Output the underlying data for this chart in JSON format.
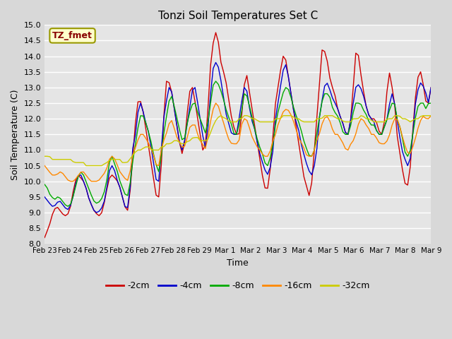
{
  "title": "Tonzi Soil Temperatures Set C",
  "xlabel": "Time",
  "ylabel": "Soil Temperature (C)",
  "ylim": [
    8.0,
    15.0
  ],
  "yticks": [
    8.0,
    8.5,
    9.0,
    9.5,
    10.0,
    10.5,
    11.0,
    11.5,
    12.0,
    12.5,
    13.0,
    13.5,
    14.0,
    14.5,
    15.0
  ],
  "xtick_labels": [
    "Feb 23",
    "Feb 24",
    "Feb 25",
    "Feb 26",
    "Feb 27",
    "Feb 28",
    "Feb 29",
    "Mar 1",
    "Mar 2",
    "Mar 3",
    "Mar 4",
    "Mar 5",
    "Mar 6",
    "Mar 7",
    "Mar 8",
    "Mar 9"
  ],
  "legend_label": "TZ_fmet",
  "series_labels": [
    "-2cm",
    "-4cm",
    "-8cm",
    "-16cm",
    "-32cm"
  ],
  "series_colors": [
    "#cc0000",
    "#0000cc",
    "#00aa00",
    "#ff8800",
    "#cccc00"
  ],
  "background_color": "#e8e8e8",
  "plot_bg_color": "#e5e5e5",
  "grid_color": "#ffffff",
  "t_2cm": [
    8.2,
    8.4,
    8.6,
    8.9,
    9.1,
    9.2,
    9.1,
    9.0,
    8.9,
    8.9,
    9.0,
    9.3,
    9.8,
    10.1,
    10.2,
    10.1,
    10.0,
    9.8,
    9.5,
    9.3,
    9.1,
    9.0,
    8.9,
    8.9,
    9.1,
    9.5,
    9.9,
    10.2,
    10.2,
    10.1,
    10.0,
    9.8,
    9.5,
    9.2,
    9.0,
    9.5,
    10.5,
    11.5,
    12.5,
    12.6,
    12.5,
    12.0,
    11.5,
    11.0,
    10.5,
    10.0,
    9.5,
    9.5,
    10.5,
    12.0,
    13.2,
    13.2,
    13.0,
    12.5,
    12.0,
    11.5,
    11.0,
    10.8,
    11.5,
    12.5,
    13.0,
    13.0,
    12.5,
    12.0,
    11.5,
    11.0,
    11.0,
    12.0,
    13.5,
    14.2,
    14.8,
    14.7,
    14.2,
    13.5,
    13.5,
    13.0,
    12.5,
    12.0,
    11.7,
    11.5,
    11.5,
    12.0,
    13.0,
    13.5,
    13.0,
    12.5,
    12.0,
    11.5,
    11.0,
    10.5,
    10.0,
    9.7,
    9.8,
    10.5,
    11.5,
    12.5,
    13.0,
    13.5,
    14.0,
    14.0,
    13.5,
    13.0,
    12.5,
    12.0,
    11.5,
    11.0,
    10.5,
    10.0,
    9.8,
    9.5,
    10.0,
    11.0,
    12.0,
    13.0,
    14.2,
    14.2,
    14.0,
    13.5,
    13.0,
    13.0,
    12.5,
    12.2,
    12.0,
    11.8,
    11.5,
    11.5,
    12.0,
    13.0,
    14.1,
    14.1,
    13.5,
    13.0,
    12.5,
    12.2,
    12.0,
    12.0,
    12.0,
    11.8,
    11.5,
    11.5,
    12.0,
    13.0,
    13.5,
    13.0,
    12.5,
    11.5,
    11.0,
    10.5,
    10.0,
    9.8,
    10.0,
    11.0,
    12.2,
    13.0,
    13.5,
    13.5,
    13.0,
    12.5,
    12.5,
    13.0
  ],
  "t_4cm": [
    9.5,
    9.4,
    9.3,
    9.2,
    9.2,
    9.3,
    9.4,
    9.3,
    9.2,
    9.1,
    9.1,
    9.3,
    9.6,
    10.0,
    10.2,
    10.2,
    10.0,
    9.8,
    9.5,
    9.3,
    9.1,
    9.0,
    9.0,
    9.1,
    9.2,
    9.5,
    10.0,
    10.5,
    10.5,
    10.3,
    10.0,
    9.8,
    9.5,
    9.2,
    9.1,
    9.5,
    11.0,
    11.2,
    12.0,
    12.5,
    12.5,
    12.0,
    11.8,
    11.5,
    11.0,
    10.5,
    10.0,
    10.0,
    11.0,
    12.0,
    12.5,
    13.0,
    13.0,
    12.5,
    12.0,
    11.5,
    11.0,
    11.0,
    11.5,
    12.0,
    12.5,
    13.0,
    13.0,
    12.5,
    12.0,
    11.5,
    11.0,
    11.5,
    12.5,
    13.5,
    13.8,
    13.8,
    13.5,
    13.0,
    12.5,
    12.0,
    11.8,
    11.5,
    11.5,
    11.5,
    12.0,
    12.5,
    13.0,
    13.0,
    12.5,
    12.0,
    11.8,
    11.5,
    11.0,
    10.8,
    10.5,
    10.3,
    10.2,
    10.5,
    11.0,
    12.0,
    12.5,
    13.0,
    13.5,
    13.8,
    13.5,
    13.0,
    12.5,
    12.0,
    11.8,
    11.5,
    11.0,
    10.8,
    10.5,
    10.3,
    10.2,
    10.5,
    11.0,
    12.0,
    12.5,
    13.0,
    13.2,
    13.0,
    12.8,
    12.5,
    12.5,
    12.2,
    12.0,
    11.8,
    11.5,
    11.5,
    12.0,
    12.5,
    13.0,
    13.1,
    13.0,
    12.8,
    12.5,
    12.2,
    12.0,
    12.0,
    11.8,
    11.5,
    11.5,
    11.5,
    11.8,
    12.0,
    12.5,
    12.8,
    12.5,
    12.0,
    11.5,
    11.0,
    10.8,
    10.5,
    10.5,
    11.0,
    12.0,
    12.8,
    13.0,
    13.2,
    13.0,
    12.8,
    12.5,
    13.0
  ],
  "t_8cm": [
    9.9,
    9.8,
    9.6,
    9.5,
    9.4,
    9.5,
    9.5,
    9.4,
    9.3,
    9.2,
    9.2,
    9.3,
    9.6,
    9.9,
    10.2,
    10.3,
    10.2,
    10.0,
    9.8,
    9.6,
    9.4,
    9.3,
    9.3,
    9.4,
    9.5,
    9.8,
    10.2,
    10.8,
    10.8,
    10.5,
    10.3,
    10.0,
    9.8,
    9.6,
    9.5,
    9.8,
    10.5,
    11.0,
    11.5,
    12.0,
    12.2,
    12.0,
    11.8,
    11.5,
    11.2,
    10.8,
    10.5,
    10.3,
    10.8,
    11.5,
    12.0,
    12.5,
    12.8,
    12.5,
    12.2,
    11.8,
    11.5,
    11.2,
    11.5,
    12.0,
    12.3,
    12.5,
    12.5,
    12.2,
    12.0,
    11.8,
    11.5,
    11.8,
    12.3,
    13.0,
    13.2,
    13.2,
    13.0,
    12.8,
    12.5,
    12.2,
    12.0,
    11.8,
    11.5,
    11.5,
    11.8,
    12.2,
    12.8,
    12.8,
    12.5,
    12.2,
    11.8,
    11.5,
    11.2,
    11.0,
    10.8,
    10.5,
    10.5,
    10.8,
    11.2,
    11.8,
    12.2,
    12.5,
    12.8,
    13.0,
    13.0,
    12.8,
    12.5,
    12.2,
    12.0,
    11.8,
    11.5,
    11.2,
    11.0,
    10.8,
    10.8,
    11.0,
    11.5,
    12.0,
    12.5,
    12.8,
    12.8,
    12.8,
    12.5,
    12.2,
    12.2,
    12.0,
    11.8,
    11.5,
    11.5,
    11.5,
    11.8,
    12.2,
    12.5,
    12.5,
    12.5,
    12.3,
    12.2,
    12.0,
    11.8,
    11.8,
    11.8,
    11.5,
    11.5,
    11.5,
    11.8,
    12.0,
    12.3,
    12.5,
    12.5,
    12.0,
    11.8,
    11.5,
    11.0,
    10.8,
    10.8,
    11.2,
    11.8,
    12.2,
    12.5,
    12.5,
    12.5,
    12.3,
    12.5,
    12.5
  ],
  "t_16cm": [
    10.5,
    10.4,
    10.3,
    10.2,
    10.2,
    10.2,
    10.3,
    10.3,
    10.2,
    10.1,
    10.0,
    10.0,
    10.0,
    10.1,
    10.2,
    10.3,
    10.3,
    10.2,
    10.1,
    10.0,
    10.0,
    10.0,
    10.0,
    10.1,
    10.2,
    10.3,
    10.5,
    10.8,
    10.8,
    10.7,
    10.5,
    10.3,
    10.2,
    10.1,
    10.0,
    10.2,
    10.8,
    11.0,
    11.2,
    11.5,
    11.5,
    11.5,
    11.3,
    11.2,
    11.0,
    10.8,
    10.5,
    10.5,
    11.0,
    11.3,
    11.5,
    11.8,
    12.0,
    11.8,
    11.5,
    11.3,
    11.2,
    11.0,
    11.2,
    11.5,
    11.8,
    11.8,
    11.8,
    11.5,
    11.3,
    11.2,
    11.0,
    11.3,
    11.8,
    12.2,
    12.5,
    12.5,
    12.3,
    12.0,
    11.8,
    11.5,
    11.3,
    11.2,
    11.2,
    11.2,
    11.3,
    11.8,
    12.0,
    12.0,
    11.8,
    11.5,
    11.3,
    11.2,
    11.0,
    11.0,
    10.8,
    10.8,
    10.8,
    11.0,
    11.3,
    11.5,
    11.8,
    12.0,
    12.2,
    12.3,
    12.3,
    12.2,
    12.0,
    11.8,
    11.5,
    11.3,
    11.2,
    11.0,
    10.8,
    10.8,
    10.8,
    11.0,
    11.3,
    11.5,
    11.8,
    12.0,
    12.1,
    12.0,
    11.8,
    11.5,
    11.5,
    11.5,
    11.3,
    11.2,
    11.0,
    11.0,
    11.2,
    11.3,
    11.5,
    11.8,
    12.0,
    12.0,
    11.8,
    11.8,
    11.5,
    11.5,
    11.5,
    11.3,
    11.2,
    11.2,
    11.2,
    11.3,
    11.5,
    11.8,
    12.0,
    12.0,
    11.8,
    11.5,
    11.2,
    11.0,
    10.8,
    11.0,
    11.2,
    11.5,
    11.8,
    12.0,
    12.1,
    12.0,
    12.0,
    12.1
  ],
  "t_32cm": [
    10.8,
    10.8,
    10.8,
    10.7,
    10.7,
    10.7,
    10.7,
    10.7,
    10.7,
    10.7,
    10.7,
    10.7,
    10.6,
    10.6,
    10.6,
    10.6,
    10.6,
    10.5,
    10.5,
    10.5,
    10.5,
    10.5,
    10.5,
    10.5,
    10.5,
    10.6,
    10.6,
    10.7,
    10.7,
    10.7,
    10.7,
    10.7,
    10.6,
    10.6,
    10.6,
    10.7,
    10.8,
    10.9,
    11.0,
    11.0,
    11.0,
    11.1,
    11.1,
    11.1,
    11.0,
    11.0,
    11.0,
    11.0,
    11.1,
    11.1,
    11.2,
    11.2,
    11.2,
    11.3,
    11.3,
    11.3,
    11.2,
    11.2,
    11.2,
    11.3,
    11.3,
    11.4,
    11.4,
    11.4,
    11.3,
    11.3,
    11.3,
    11.3,
    11.5,
    11.7,
    11.9,
    12.0,
    12.1,
    12.1,
    12.0,
    12.0,
    11.9,
    11.9,
    11.9,
    11.9,
    12.0,
    12.0,
    12.1,
    12.1,
    12.1,
    12.0,
    12.0,
    12.0,
    11.9,
    11.9,
    11.9,
    11.9,
    11.9,
    11.9,
    11.9,
    12.0,
    12.0,
    12.0,
    12.1,
    12.1,
    12.1,
    12.1,
    12.1,
    12.0,
    12.0,
    12.0,
    11.9,
    11.9,
    11.9,
    11.9,
    11.9,
    11.9,
    12.0,
    12.0,
    12.0,
    12.1,
    12.1,
    12.1,
    12.1,
    12.1,
    12.0,
    12.0,
    12.0,
    11.9,
    11.9,
    11.9,
    11.9,
    12.0,
    12.0,
    12.0,
    12.1,
    12.1,
    12.0,
    12.0,
    12.0,
    11.9,
    11.9,
    11.9,
    11.9,
    11.9,
    11.9,
    12.0,
    12.0,
    12.0,
    12.1,
    12.1,
    12.1,
    12.0,
    12.0,
    12.0,
    11.9,
    11.9,
    12.0,
    12.0,
    12.0,
    12.1,
    12.1,
    12.1,
    12.1,
    12.1
  ]
}
